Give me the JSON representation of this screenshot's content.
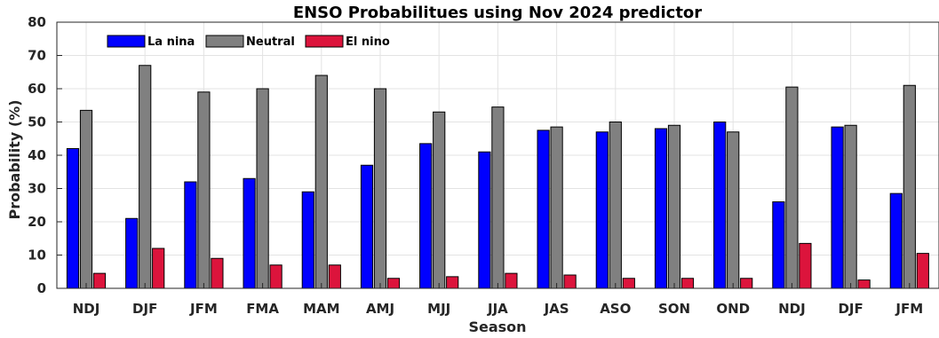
{
  "chart_data": {
    "type": "bar",
    "title": "ENSO Probabilitues using Nov 2024 predictor",
    "xlabel": "Season",
    "ylabel": "Probability (%)",
    "ylim": [
      0,
      80
    ],
    "yticks": [
      0,
      10,
      20,
      30,
      40,
      50,
      60,
      70,
      80
    ],
    "grid": true,
    "legend_position": "top-left",
    "categories": [
      "NDJ",
      "DJF",
      "JFM",
      "FMA",
      "MAM",
      "AMJ",
      "MJJ",
      "JJA",
      "JAS",
      "ASO",
      "SON",
      "OND",
      "NDJ",
      "DJF",
      "JFM"
    ],
    "series": [
      {
        "name": "La nina",
        "color": "#0000ff",
        "values": [
          42,
          21,
          32,
          33,
          29,
          37,
          43.5,
          41,
          47.5,
          47,
          48,
          50,
          26,
          48.5,
          28.5
        ]
      },
      {
        "name": "Neutral",
        "color": "#808080",
        "values": [
          53.5,
          67,
          59,
          60,
          64,
          60,
          53,
          54.5,
          48.5,
          50,
          49,
          47,
          60.5,
          49,
          61
        ]
      },
      {
        "name": "El nino",
        "color": "#dc143c",
        "values": [
          4.5,
          12,
          9,
          7,
          7,
          3,
          3.5,
          4.5,
          4,
          3,
          3,
          3,
          13.5,
          2.5,
          10.5
        ]
      }
    ]
  }
}
